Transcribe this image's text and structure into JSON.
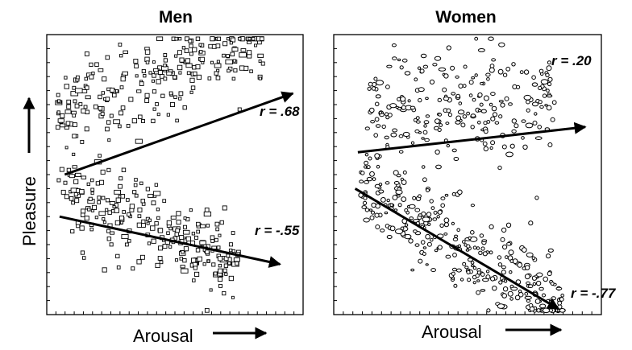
{
  "chart_data": [
    {
      "type": "scatter",
      "title": "Men",
      "xlabel": "Arousal",
      "ylabel": "Pleasure",
      "xlim": [
        0,
        10
      ],
      "ylim": [
        0,
        10
      ],
      "grid": false,
      "marker": "square",
      "clusters": [
        {
          "x_range": [
            0.4,
            8.5
          ],
          "y_center_at_x0": 7.0,
          "slope": 0.35,
          "spread": 1.0,
          "count": 250
        },
        {
          "x_range": [
            0.4,
            7.5
          ],
          "y_center_at_x0": 4.7,
          "slope": -0.38,
          "spread": 1.0,
          "count": 260
        }
      ],
      "trend_lines": [
        {
          "label": "r = .68",
          "r": 0.68,
          "x": [
            0.7,
            9.6
          ],
          "y": [
            5.0,
            7.9
          ]
        },
        {
          "label": "r = -.55",
          "r": -0.55,
          "x": [
            0.5,
            9.1
          ],
          "y": [
            3.5,
            1.8
          ]
        }
      ]
    },
    {
      "type": "scatter",
      "title": "Women",
      "xlabel": "Arousal",
      "ylabel": "",
      "xlim": [
        0,
        10
      ],
      "ylim": [
        0,
        10
      ],
      "grid": false,
      "marker": "circle",
      "clusters": [
        {
          "x_range": [
            1.2,
            8.3
          ],
          "y_center_at_x0": 7.3,
          "slope": 0.05,
          "spread": 1.3,
          "count": 230
        },
        {
          "x_range": [
            1.0,
            8.6
          ],
          "y_center_at_x0": 5.4,
          "slope": -0.62,
          "spread": 1.1,
          "count": 320
        }
      ],
      "trend_lines": [
        {
          "label": "r = .20",
          "r": 0.2,
          "x": [
            0.9,
            9.4
          ],
          "y": [
            5.8,
            6.7
          ]
        },
        {
          "label": "r = -.77",
          "r": -0.77,
          "x": [
            0.8,
            8.4
          ],
          "y": [
            4.5,
            0.2
          ]
        }
      ]
    }
  ]
}
